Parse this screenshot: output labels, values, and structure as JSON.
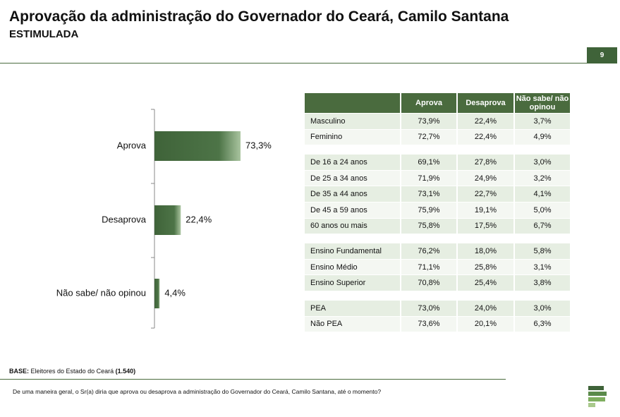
{
  "header": {
    "title": "Aprovação da administração do Governador do Ceará, Camilo Santana",
    "subtitle": "ESTIMULADA",
    "page_number": "9"
  },
  "chart_data": {
    "type": "bar",
    "orientation": "horizontal",
    "categories": [
      "Aprova",
      "Desaprova",
      "Não sabe/ não opinou"
    ],
    "values": [
      73.3,
      22.4,
      4.4
    ],
    "value_labels": [
      "73,3%",
      "22,4%",
      "4,4%"
    ],
    "color": "#3f6339"
  },
  "table": {
    "columns": [
      "Aprova",
      "Desaprova",
      "Não sabe/ não opinou"
    ],
    "groups": [
      [
        [
          "Masculino",
          "73,9%",
          "22,4%",
          "3,7%"
        ],
        [
          "Feminino",
          "72,7%",
          "22,4%",
          "4,9%"
        ]
      ],
      [
        [
          "De 16 a 24 anos",
          "69,1%",
          "27,8%",
          "3,0%"
        ],
        [
          "De 25 a 34 anos",
          "71,9%",
          "24,9%",
          "3,2%"
        ],
        [
          "De 35 a 44 anos",
          "73,1%",
          "22,7%",
          "4,1%"
        ],
        [
          "De 45 a 59 anos",
          "75,9%",
          "19,1%",
          "5,0%"
        ],
        [
          "60 anos ou mais",
          "75,8%",
          "17,5%",
          "6,7%"
        ]
      ],
      [
        [
          "Ensino Fundamental",
          "76,2%",
          "18,0%",
          "5,8%"
        ],
        [
          "Ensino Médio",
          "71,1%",
          "25,8%",
          "3,1%"
        ],
        [
          "Ensino Superior",
          "70,8%",
          "25,4%",
          "3,8%"
        ]
      ],
      [
        [
          "PEA",
          "73,0%",
          "24,0%",
          "3,0%"
        ],
        [
          "Não PEA",
          "73,6%",
          "20,1%",
          "6,3%"
        ]
      ]
    ]
  },
  "footer": {
    "base_label": "BASE:",
    "base_text": "Eleitores do Estado do Ceará",
    "base_n": "(1.540)",
    "question": "De uma maneira geral, o Sr(a) diria que aprova ou desaprova a administração do Governador do Ceará, Camilo Santana, até o momento?"
  }
}
